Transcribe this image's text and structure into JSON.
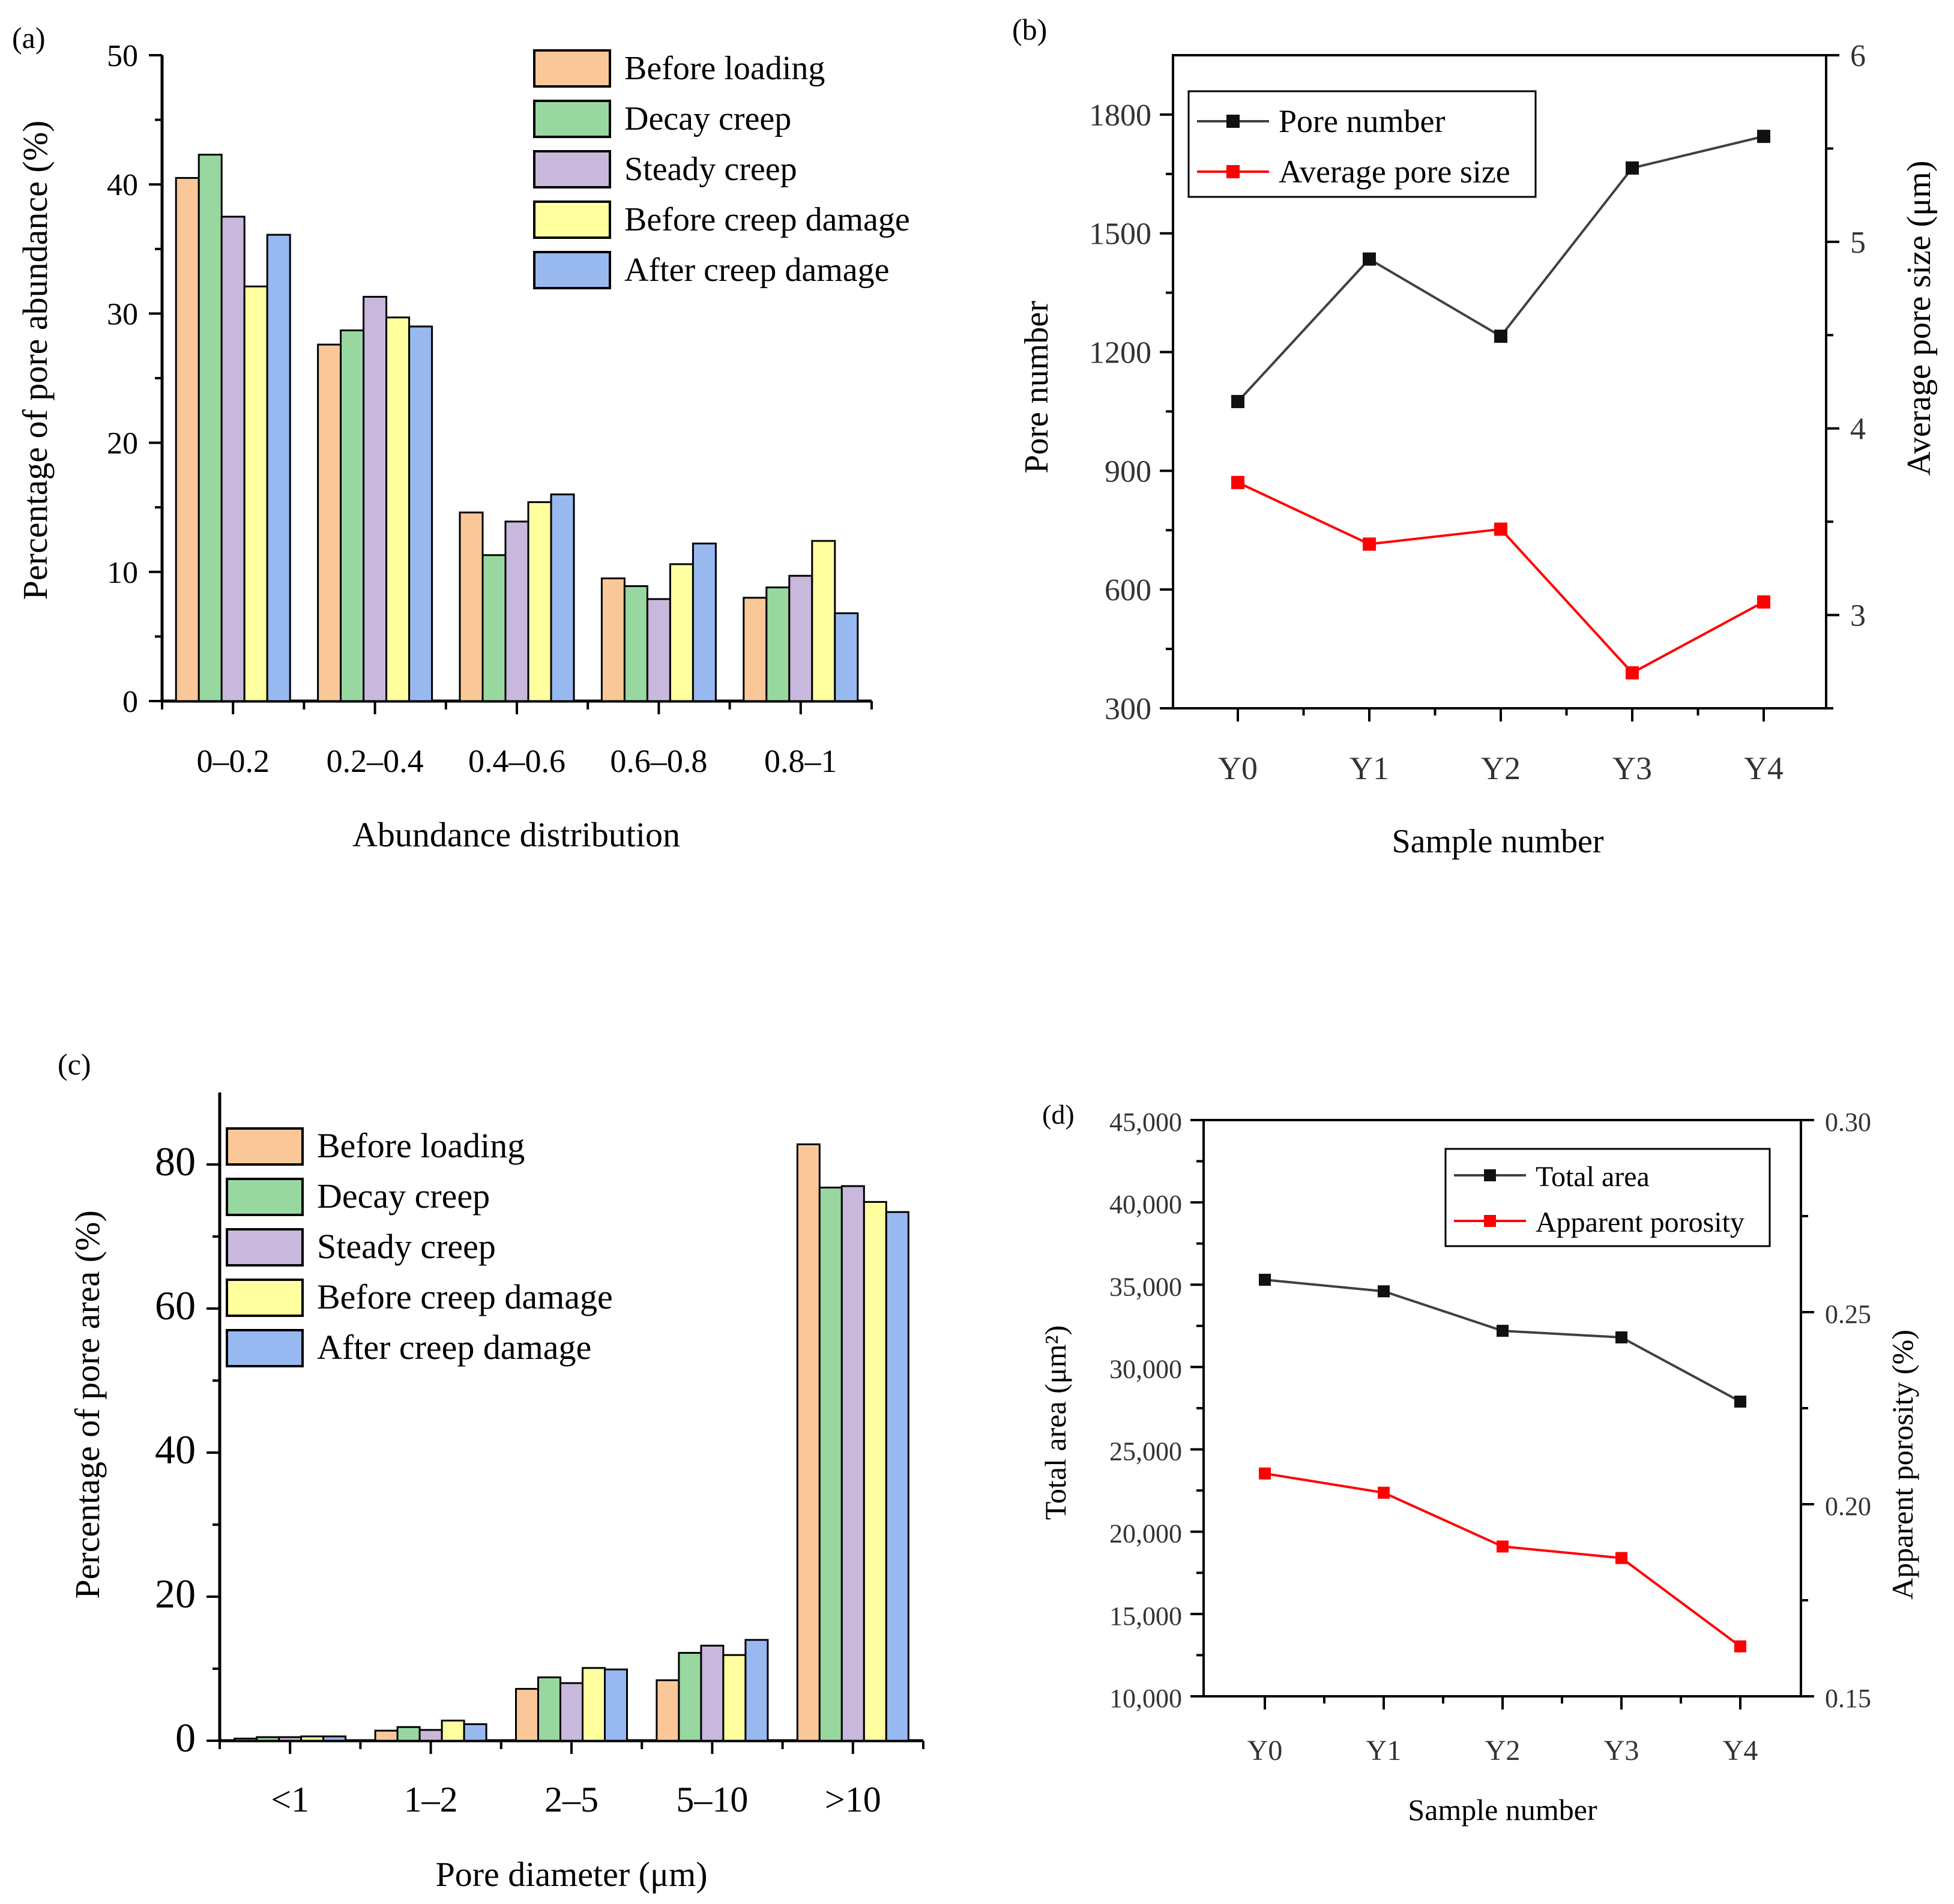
{
  "chart_data": [
    {
      "panel": "(a)",
      "type": "bar",
      "title": "",
      "xlabel": "Abundance distribution",
      "ylabel": "Percentage of pore abundance (%)",
      "ylim": [
        0,
        50
      ],
      "yticks": [
        "0",
        "10",
        "20",
        "30",
        "40",
        "50"
      ],
      "categories": [
        "0–0.2",
        "0.2–0.4",
        "0.4–0.6",
        "0.6–0.8",
        "0.8–1"
      ],
      "series": [
        {
          "name": "Before loading",
          "color": "#FAC898",
          "values": [
            40.5,
            27.6,
            14.6,
            9.5,
            8.0
          ]
        },
        {
          "name": "Decay creep",
          "color": "#98D8A0",
          "values": [
            42.3,
            28.7,
            11.3,
            8.9,
            8.8
          ]
        },
        {
          "name": "Steady creep",
          "color": "#C8B8DC",
          "values": [
            37.5,
            31.3,
            13.9,
            7.9,
            9.7
          ]
        },
        {
          "name": "Before creep damage",
          "color": "#FFFFA0",
          "values": [
            32.1,
            29.7,
            15.4,
            10.6,
            12.4
          ]
        },
        {
          "name": "After creep damage",
          "color": "#98B8F0",
          "values": [
            36.1,
            29.0,
            16.0,
            12.2,
            6.8
          ]
        }
      ]
    },
    {
      "panel": "(b)",
      "type": "line",
      "xlabel": "Sample number",
      "ylabel": "Pore number",
      "y2label": "Average pore size (μm)",
      "categories": [
        "Y0",
        "Y1",
        "Y2",
        "Y3",
        "Y4"
      ],
      "ylim": [
        300,
        1950
      ],
      "yticks": [
        "300",
        "600",
        "900",
        "1200",
        "1500",
        "1800"
      ],
      "y2lim": [
        2.5,
        6
      ],
      "y2ticks": [
        "3",
        "4",
        "5",
        "6"
      ],
      "series": [
        {
          "name": "Pore number",
          "axis": "left",
          "color": "#404040",
          "values": [
            1075,
            1435,
            1240,
            1665,
            1745
          ]
        },
        {
          "name": "Average pore size",
          "axis": "right",
          "color": "#FF0000",
          "values": [
            3.71,
            3.38,
            3.46,
            2.69,
            3.07
          ]
        }
      ]
    },
    {
      "panel": "(c)",
      "type": "bar",
      "xlabel": "Pore diameter (μm)",
      "ylabel": "Percentage of pore area (%)",
      "ylim": [
        0,
        90
      ],
      "yticks": [
        "0",
        "20",
        "40",
        "60",
        "80"
      ],
      "categories": [
        "<1",
        "1–2",
        "2–5",
        "5–10",
        ">10"
      ],
      "series": [
        {
          "name": "Before loading",
          "color": "#FAC898",
          "values": [
            0.3,
            1.4,
            7.2,
            8.4,
            82.8
          ]
        },
        {
          "name": "Decay creep",
          "color": "#98D8A0",
          "values": [
            0.5,
            1.9,
            8.8,
            12.2,
            76.8
          ]
        },
        {
          "name": "Steady creep",
          "color": "#C8B8DC",
          "values": [
            0.5,
            1.5,
            8.0,
            13.2,
            77.0
          ]
        },
        {
          "name": "Before creep damage",
          "color": "#FFFFA0",
          "values": [
            0.6,
            2.8,
            10.1,
            11.9,
            74.8
          ]
        },
        {
          "name": "After creep damage",
          "color": "#98B8F0",
          "values": [
            0.6,
            2.3,
            9.9,
            14.0,
            73.4
          ]
        }
      ]
    },
    {
      "panel": "(d)",
      "type": "line",
      "xlabel": "Sample number",
      "ylabel": "Total area (μm²)",
      "y2label": "Apparent porosity (%)",
      "categories": [
        "Y0",
        "Y1",
        "Y2",
        "Y3",
        "Y4"
      ],
      "ylim": [
        10000,
        45000
      ],
      "yticks": [
        "10,000",
        "15,000",
        "20,000",
        "25,000",
        "30,000",
        "35,000",
        "40,000",
        "45,000"
      ],
      "y2lim": [
        0.15,
        0.3
      ],
      "y2ticks": [
        "0.15",
        "0.20",
        "0.25",
        "0.30"
      ],
      "series": [
        {
          "name": "Total area",
          "axis": "left",
          "color": "#404040",
          "values": [
            35300,
            34600,
            32200,
            31800,
            27900
          ]
        },
        {
          "name": "Apparent porosity",
          "axis": "right",
          "color": "#FF0000",
          "values": [
            0.208,
            0.203,
            0.189,
            0.186,
            0.163
          ]
        }
      ]
    }
  ]
}
